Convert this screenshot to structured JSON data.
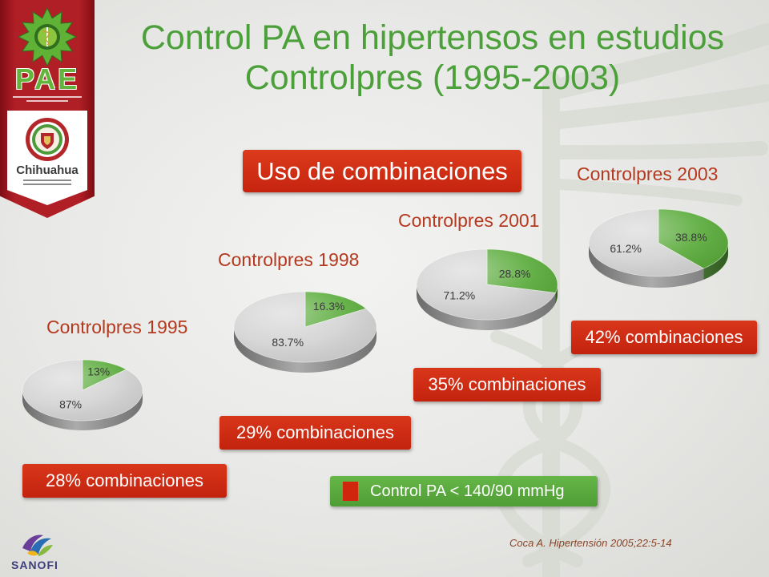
{
  "sidebar": {
    "logo_text": "PAE",
    "seal_text": "Chihuahua"
  },
  "title": {
    "line1": "Control PA en hipertensos en estudios",
    "line2": "Controlpres (1995-2003)"
  },
  "badge": {
    "label": "Uso de combinaciones"
  },
  "legend": {
    "label": "Control PA < 140/90 mmHg",
    "swatch_color": "#d0260e"
  },
  "citation": "Coca A. Hipertensión 2005;22:5-14",
  "footer": {
    "logo_text": "SANOFI"
  },
  "colors": {
    "title": "#4ca03a",
    "box_red": "#cf2a13",
    "legend_green": "#5aab3c",
    "series_title": "#b5391f"
  },
  "chart_data": [
    {
      "type": "pie",
      "title": "Controlpres 1995",
      "slices": [
        {
          "label": "13%",
          "value": 13,
          "color": "#5aab3b"
        },
        {
          "label": "87%",
          "value": 87,
          "color": "#d3d3d3"
        }
      ],
      "annotation": "28% combinaciones"
    },
    {
      "type": "pie",
      "title": "Controlpres 1998",
      "slices": [
        {
          "label": "16.3%",
          "value": 16.3,
          "color": "#5aab3b"
        },
        {
          "label": "83.7%",
          "value": 83.7,
          "color": "#d3d3d3"
        }
      ],
      "annotation": "29% combinaciones"
    },
    {
      "type": "pie",
      "title": "Controlpres 2001",
      "slices": [
        {
          "label": "28.8%",
          "value": 28.8,
          "color": "#5aab3b"
        },
        {
          "label": "71.2%",
          "value": 71.2,
          "color": "#d3d3d3"
        }
      ],
      "annotation": "35% combinaciones"
    },
    {
      "type": "pie",
      "title": "Controlpres 2003",
      "slices": [
        {
          "label": "38.8%",
          "value": 38.8,
          "color": "#5aab3b"
        },
        {
          "label": "61.2%",
          "value": 61.2,
          "color": "#d3d3d3"
        }
      ],
      "annotation": "42% combinaciones"
    }
  ]
}
